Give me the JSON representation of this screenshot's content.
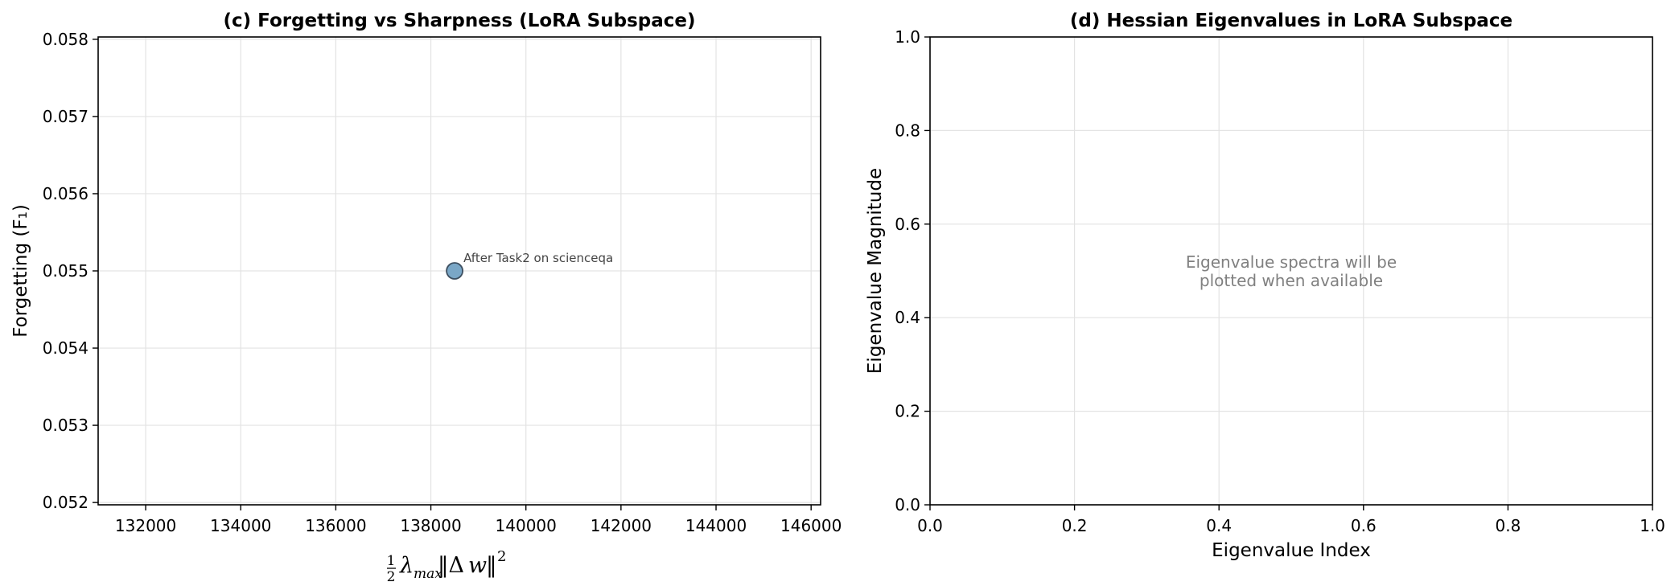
{
  "chart_data": [
    {
      "type": "scatter",
      "title": "(c) Forgetting vs Sharpness (LoRA Subspace)",
      "xlabel": "½λmax‖Δw‖²",
      "ylabel": "Forgetting (F₁)",
      "xlim": [
        131000,
        146200
      ],
      "ylim": [
        0.05197,
        0.05803
      ],
      "x_ticks": [
        132000,
        134000,
        136000,
        138000,
        140000,
        142000,
        144000,
        146000
      ],
      "x_tick_labels": [
        "132000",
        "134000",
        "136000",
        "138000",
        "140000",
        "142000",
        "144000",
        "146000"
      ],
      "y_ticks": [
        0.052,
        0.053,
        0.054,
        0.055,
        0.056,
        0.057,
        0.058
      ],
      "y_tick_labels": [
        "0.052",
        "0.053",
        "0.054",
        "0.055",
        "0.056",
        "0.057",
        "0.058"
      ],
      "grid": true,
      "legend": "none",
      "points": [
        {
          "x": 138500,
          "y": 0.055,
          "label": "After Task2 on scienceqa",
          "color": "#7aa7c7",
          "edge_color": "#3d4f60"
        }
      ]
    },
    {
      "type": "line",
      "title": "(d) Hessian Eigenvalues in LoRA Subspace",
      "xlabel": "Eigenvalue Index",
      "ylabel": "Eigenvalue Magnitude",
      "xlim": [
        0.0,
        1.0
      ],
      "ylim": [
        0.0,
        1.0
      ],
      "x_ticks": [
        0.0,
        0.2,
        0.4,
        0.6,
        0.8,
        1.0
      ],
      "x_tick_labels": [
        "0.0",
        "0.2",
        "0.4",
        "0.6",
        "0.8",
        "1.0"
      ],
      "y_ticks": [
        0.0,
        0.2,
        0.4,
        0.6,
        0.8,
        1.0
      ],
      "y_tick_labels": [
        "0.0",
        "0.2",
        "0.4",
        "0.6",
        "0.8",
        "1.0"
      ],
      "grid": true,
      "legend": "none",
      "series": [],
      "note_lines": [
        "Eigenvalue spectra will be",
        "plotted when available"
      ],
      "note_color": "#808080"
    }
  ]
}
